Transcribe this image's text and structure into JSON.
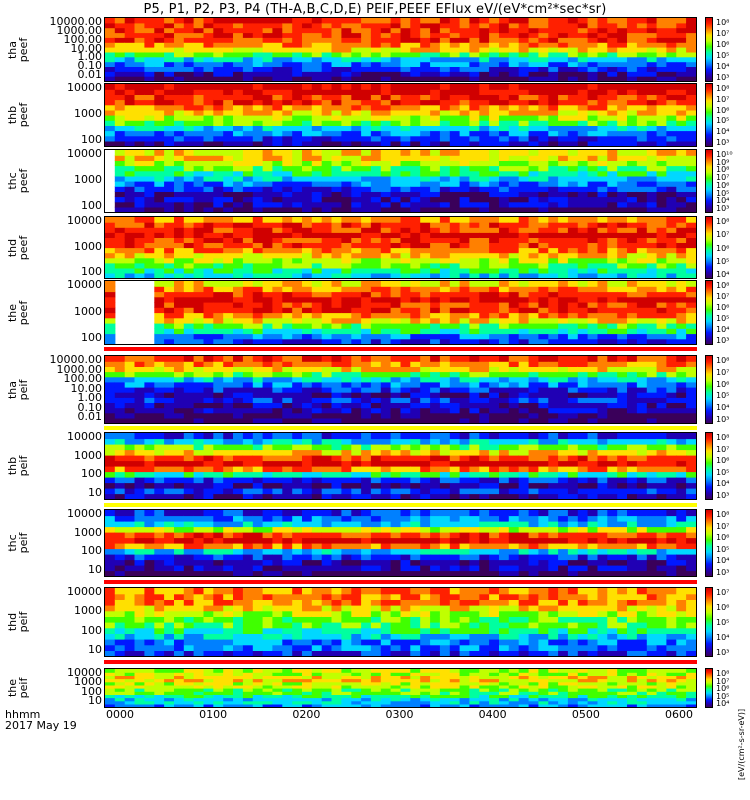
{
  "title": "P5, P1, P2, P3, P4 (TH-A,B,C,D,E) PEIF,PEEF EFlux eV/(eV*cm²*sec*sr)",
  "xaxis": {
    "label_line1": "hhmm",
    "label_line2": "2017 May 19",
    "ticks": [
      "0000",
      "0100",
      "0200",
      "0300",
      "0400",
      "0500",
      "0600"
    ]
  },
  "colorbar_units": "[eV/(cm²-s-sr-eV)]",
  "colors": {
    "palette": [
      "#3a005a",
      "#2000b4",
      "#0018ff",
      "#0080ff",
      "#00d8ff",
      "#00ffa0",
      "#40ff00",
      "#c0ff00",
      "#ffe000",
      "#ff8000",
      "#ff2000",
      "#d00000"
    ],
    "separator_red": "#ff0000",
    "separator_yellow": "#ffff00"
  },
  "chart_data": [
    {
      "type": "heatmap",
      "ylabel": "tha\npeef",
      "yticks": [
        "10000.00",
        "1000.00",
        "100.00",
        "10.00",
        "1.00",
        "0.10",
        "0.01"
      ],
      "cbar_ticks": [
        "10⁸",
        "10⁷",
        "10⁶",
        "10⁵",
        "10⁴",
        "10³"
      ],
      "ylim": [
        0.01,
        30000
      ],
      "scale": "log",
      "x_range": [
        "0000",
        "0600"
      ]
    },
    {
      "type": "heatmap",
      "ylabel": "thb\npeef",
      "yticks": [
        "10000",
        "1000",
        "100"
      ],
      "cbar_ticks": [
        "10⁸",
        "10⁷",
        "10⁶",
        "10⁵",
        "10⁴",
        "10³"
      ],
      "ylim": [
        10,
        30000
      ],
      "scale": "log",
      "x_range": [
        "0000",
        "0600"
      ]
    },
    {
      "type": "heatmap",
      "ylabel": "thc\npeef",
      "yticks": [
        "10000",
        "1000",
        "100"
      ],
      "cbar_ticks": [
        "10¹⁰",
        "10⁹",
        "10⁸",
        "10⁷",
        "10⁶",
        "10⁵",
        "10⁴",
        "10³"
      ],
      "ylim": [
        10,
        30000
      ],
      "scale": "log",
      "x_range": [
        "0000",
        "0600"
      ]
    },
    {
      "type": "heatmap",
      "ylabel": "thd\npeef",
      "yticks": [
        "10000",
        "1000",
        "100"
      ],
      "cbar_ticks": [
        "10⁸",
        "10⁷",
        "10⁶",
        "10⁵",
        "10⁴"
      ],
      "ylim": [
        10,
        30000
      ],
      "scale": "log",
      "x_range": [
        "0000",
        "0600"
      ]
    },
    {
      "type": "heatmap",
      "ylabel": "the\npeef",
      "yticks": [
        "10000",
        "1000",
        "100"
      ],
      "cbar_ticks": [
        "10⁸",
        "10⁷",
        "10⁶",
        "10⁵",
        "10⁴",
        "10³"
      ],
      "ylim": [
        10,
        30000
      ],
      "scale": "log",
      "x_range": [
        "0000",
        "0600"
      ]
    },
    {
      "type": "heatmap",
      "ylabel": "tha\npeif",
      "yticks": [
        "10000.00",
        "1000.00",
        "100.00",
        "10.00",
        "1.00",
        "0.10",
        "0.01"
      ],
      "cbar_ticks": [
        "10⁸",
        "10⁷",
        "10⁶",
        "10⁵",
        "10⁴",
        "10³"
      ],
      "ylim": [
        0.01,
        30000
      ],
      "scale": "log",
      "x_range": [
        "0000",
        "0600"
      ]
    },
    {
      "type": "heatmap",
      "ylabel": "thb\npeif",
      "yticks": [
        "10000",
        "1000",
        "100",
        "10"
      ],
      "cbar_ticks": [
        "10⁸",
        "10⁷",
        "10⁶",
        "10⁵",
        "10⁴",
        "10³"
      ],
      "ylim": [
        5,
        30000
      ],
      "scale": "log",
      "x_range": [
        "0000",
        "0600"
      ]
    },
    {
      "type": "heatmap",
      "ylabel": "thc\npeif",
      "yticks": [
        "10000",
        "1000",
        "100",
        "10"
      ],
      "cbar_ticks": [
        "10⁸",
        "10⁷",
        "10⁶",
        "10⁵",
        "10⁴",
        "10³"
      ],
      "ylim": [
        5,
        30000
      ],
      "scale": "log",
      "x_range": [
        "0000",
        "0600"
      ]
    },
    {
      "type": "heatmap",
      "ylabel": "thd\npeif",
      "yticks": [
        "10000",
        "1000",
        "100",
        "10"
      ],
      "cbar_ticks": [
        "10⁷",
        "10⁶",
        "10⁵",
        "10⁴",
        "10³"
      ],
      "ylim": [
        5,
        30000
      ],
      "scale": "log",
      "x_range": [
        "0000",
        "0600"
      ]
    },
    {
      "type": "heatmap",
      "ylabel": "the\npeif",
      "yticks": [
        "10000",
        "1000",
        "100",
        "10"
      ],
      "cbar_ticks": [
        "10⁸",
        "10⁷",
        "10⁶",
        "10⁵",
        "10⁴"
      ],
      "ylim": [
        5,
        30000
      ],
      "scale": "log",
      "x_range": [
        "0000",
        "0600"
      ]
    }
  ]
}
